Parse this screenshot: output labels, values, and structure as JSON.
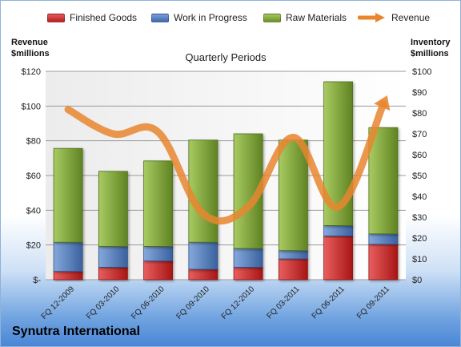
{
  "company": "Synutra International",
  "legend": [
    {
      "label": "Finished Goods",
      "color": "#d42b2b",
      "kind": "bar"
    },
    {
      "label": "Work in Progress",
      "color": "#4b77be",
      "kind": "bar"
    },
    {
      "label": "Raw Materials",
      "color": "#7ea535",
      "kind": "bar"
    },
    {
      "label": "Revenue",
      "color": "#e8862f",
      "kind": "arrow"
    }
  ],
  "left_axis_title": [
    "Revenue",
    "$millions"
  ],
  "right_axis_title": [
    "Inventory",
    "$millions"
  ],
  "chart_data": {
    "type": "bar",
    "stacked": true,
    "title": "Quarterly Periods",
    "categories": [
      "FQ 12-2009",
      "FQ 03-2010",
      "FQ 06-2010",
      "FQ 09-2010",
      "FQ 12-2010",
      "FQ 03-2011",
      "FQ 06-2011",
      "FQ 09-2011"
    ],
    "series": [
      {
        "name": "Finished Goods",
        "axis": "right",
        "color": "#d42b2b",
        "values": [
          4,
          6,
          9,
          5,
          6,
          10,
          21,
          17
        ]
      },
      {
        "name": "Work in Progress",
        "axis": "right",
        "color": "#4b77be",
        "values": [
          14,
          10,
          7,
          13,
          9,
          4,
          5,
          5
        ]
      },
      {
        "name": "Raw Materials",
        "axis": "right",
        "color": "#7ea535",
        "values": [
          45,
          36,
          41,
          49,
          55,
          53,
          69,
          51
        ]
      },
      {
        "name": "Revenue",
        "axis": "left",
        "type": "line",
        "color": "#e8862f",
        "values": [
          98,
          84,
          85,
          38,
          42,
          82,
          42,
          101
        ]
      }
    ],
    "y_left": {
      "min": 0,
      "max": 120,
      "step": 20,
      "tick_labels": [
        "$-",
        "$20",
        "$40",
        "$60",
        "$80",
        "$100",
        "$120"
      ]
    },
    "y_right": {
      "min": 0,
      "max": 100,
      "step": 10,
      "tick_labels": [
        "$0",
        "$10",
        "$20",
        "$30",
        "$40",
        "$50",
        "$60",
        "$70",
        "$80",
        "$90",
        "$100"
      ]
    },
    "grid": true
  }
}
